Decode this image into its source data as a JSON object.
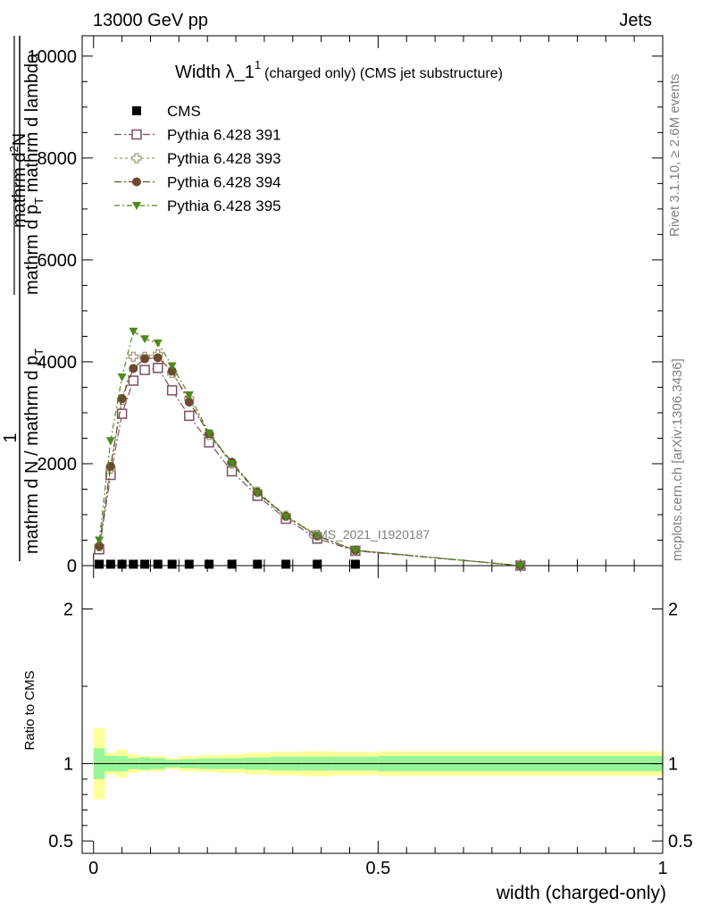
{
  "header": {
    "left": "13000 GeV pp",
    "right": "Jets"
  },
  "plot_title": {
    "main": "Width λ_1",
    "superscript": "1",
    "sub": "(charged only) (CMS jet substructure)"
  },
  "side_labels": {
    "rivet": "Rivet 3.1.10, ≥ 2.6M events",
    "mcplots": "mcplots.cern.ch [arXiv:1306.3436]"
  },
  "watermark": "CMS_2021_I1920187",
  "y_axis_label": {
    "one": "1",
    "numerator": "mathrm d",
    "numerator_sup": "2",
    "numerator_rest": "N",
    "line_mid": "mathrm d p",
    "line_mid_sub": "T",
    "line_mid_rest": " mathrm d lambda",
    "denominator": "mathrm d N / mathrm d p",
    "denominator_sub": "T"
  },
  "ratio_ylabel": "Ratio to CMS",
  "x_axis_label": "width (charged-only)",
  "legend": [
    {
      "label": "CMS",
      "marker": "square-filled",
      "color": "#000000"
    },
    {
      "label": "Pythia 6.428 391",
      "marker": "square-open",
      "color": "#7b4f68"
    },
    {
      "label": "Pythia 6.428 393",
      "marker": "cross-open",
      "color": "#a39a78"
    },
    {
      "label": "Pythia 6.428 394",
      "marker": "circle-filled",
      "color": "#6b4a2e"
    },
    {
      "label": "Pythia 6.428 395",
      "marker": "triangle-down-filled",
      "color": "#4d8a1e"
    }
  ],
  "chart_data": {
    "type": "line",
    "x_range": [
      -0.02,
      1.0
    ],
    "main_ylim": [
      0,
      10400
    ],
    "main_yticks": [
      0,
      2000,
      4000,
      6000,
      8000,
      10000
    ],
    "main_ytick_labels": [
      "0",
      "2000",
      "4000",
      "6000",
      "8000",
      "10000"
    ],
    "ratio_ylim": [
      0.42,
      2.28
    ],
    "ratio_yticks": [
      0.5,
      1,
      2
    ],
    "ratio_ytick_labels": [
      "0.5",
      "1",
      "2"
    ],
    "xticks": [
      0,
      0.5,
      1
    ],
    "xtick_labels": [
      "0",
      "0.5",
      "1"
    ],
    "x": [
      0.01,
      0.03,
      0.05,
      0.07,
      0.09,
      0.113,
      0.138,
      0.168,
      0.203,
      0.243,
      0.288,
      0.338,
      0.393,
      0.46,
      0.75
    ],
    "cms": [
      10,
      10,
      10,
      10,
      10,
      10,
      10,
      10,
      10,
      10,
      10,
      10,
      10,
      10,
      0
    ],
    "cms_x": [
      0.01,
      0.03,
      0.05,
      0.07,
      0.09,
      0.113,
      0.138,
      0.168,
      0.203,
      0.243,
      0.288,
      0.338,
      0.393,
      0.46
    ],
    "series": [
      {
        "name": "Pythia 6.428 391",
        "values": [
          320,
          1780,
          2980,
          3630,
          3840,
          3880,
          3440,
          2940,
          2420,
          1850,
          1370,
          920,
          530,
          290,
          0
        ]
      },
      {
        "name": "Pythia 6.428 393",
        "values": [
          380,
          1900,
          3250,
          4100,
          4100,
          4150,
          3780,
          3280,
          2560,
          2000,
          1450,
          980,
          600,
          300,
          0
        ]
      },
      {
        "name": "Pythia 6.428 394",
        "values": [
          380,
          1950,
          3280,
          3870,
          4060,
          4080,
          3820,
          3210,
          2590,
          2030,
          1440,
          970,
          580,
          300,
          0
        ]
      },
      {
        "name": "Pythia 6.428 395",
        "values": [
          500,
          2450,
          3700,
          4600,
          4450,
          4370,
          3920,
          3350,
          2600,
          2000,
          1420,
          960,
          590,
          300,
          0
        ]
      }
    ],
    "ratio_band_edges": [
      0.0,
      0.02,
      0.04,
      0.06,
      0.08,
      0.1,
      0.126,
      0.15,
      0.185,
      0.22,
      0.265,
      0.31,
      0.365,
      0.42,
      0.5,
      1.0
    ],
    "ratio_inner_half": [
      0.1,
      0.05,
      0.05,
      0.035,
      0.04,
      0.035,
      0.025,
      0.03,
      0.035,
      0.035,
      0.04,
      0.045,
      0.045,
      0.045,
      0.05
    ],
    "ratio_outer_half": [
      0.23,
      0.07,
      0.09,
      0.06,
      0.05,
      0.05,
      0.035,
      0.05,
      0.055,
      0.06,
      0.07,
      0.075,
      0.08,
      0.075,
      0.08
    ]
  }
}
